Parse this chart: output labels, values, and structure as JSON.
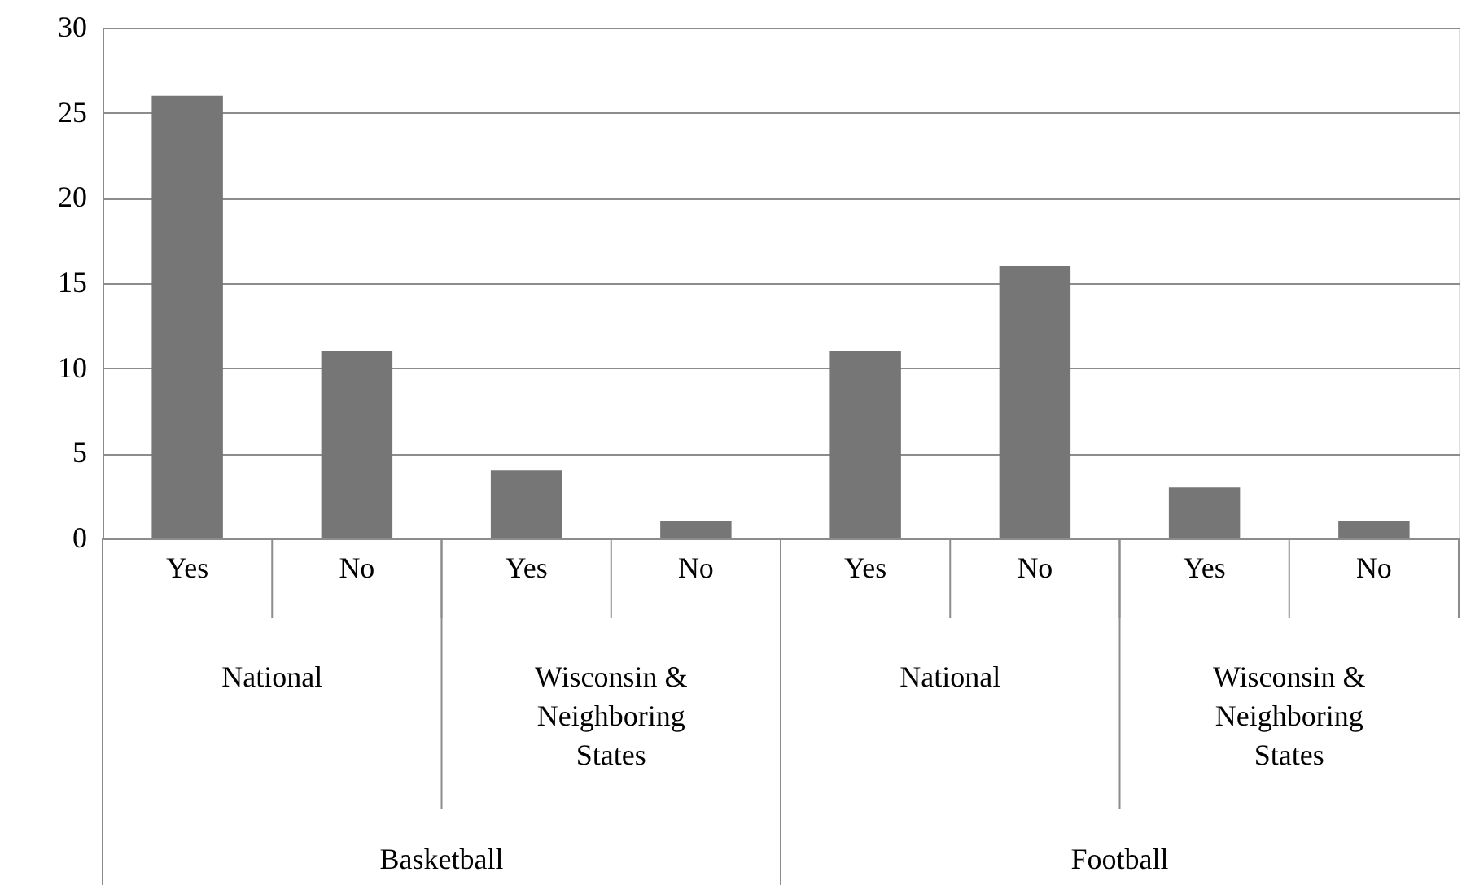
{
  "chart_data": {
    "type": "bar",
    "categories": [
      "Yes",
      "No",
      "Yes",
      "No",
      "Yes",
      "No",
      "Yes",
      "No"
    ],
    "values": [
      26,
      11,
      4,
      1,
      11,
      16,
      3,
      1
    ],
    "color": "#767676",
    "ylim": [
      0,
      30
    ],
    "yticks": [
      0,
      5,
      10,
      15,
      20,
      25,
      30
    ],
    "grid": "y",
    "annotations": [
      "National",
      "Wisconsin & Neighboring States",
      "National",
      "Wisconsin & Neighboring States",
      "Basketball",
      "Football"
    ]
  }
}
